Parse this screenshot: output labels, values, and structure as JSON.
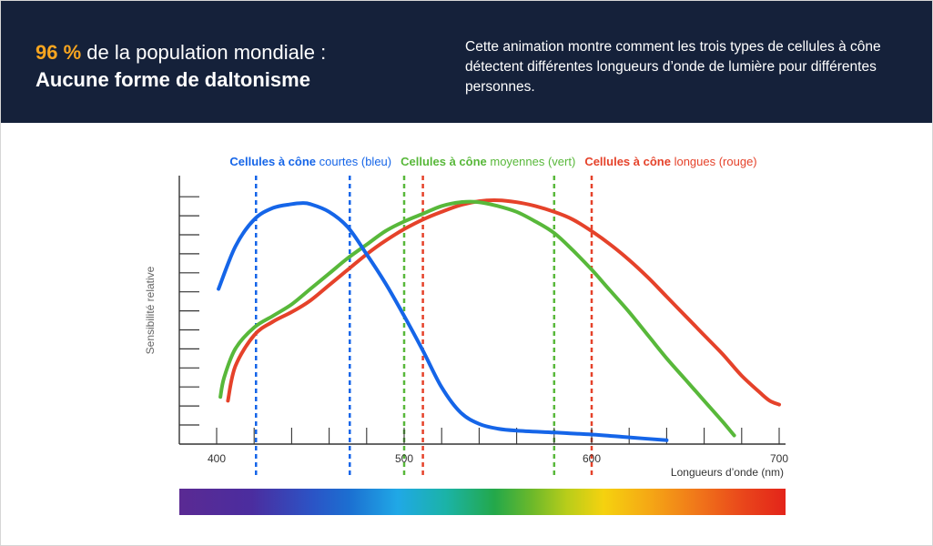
{
  "header": {
    "title_highlight": "96 %",
    "title_rest": " de la population mondiale :",
    "subtitle": "Aucune forme de daltonisme",
    "description": "Cette animation montre comment les trois types de cellules à cône détectent différentes longueurs d’onde de lumière pour différentes personnes."
  },
  "colors": {
    "header_bg": "#15213a",
    "highlight": "#f7a520",
    "short": "#1565e8",
    "medium": "#58b83a",
    "long": "#e5422a",
    "axis": "#333333"
  },
  "legend": [
    {
      "bold": "Cellules à cône",
      "rest": " courtes (bleu)",
      "color": "#1565e8"
    },
    {
      "bold": "Cellules à cône",
      "rest": " moyennes (vert)",
      "color": "#58b83a"
    },
    {
      "bold": "Cellules à cône",
      "rest": " longues (rouge)",
      "color": "#e5422a"
    }
  ],
  "chart_data": {
    "type": "line",
    "xlabel": "Longueurs d’onde (nm)",
    "ylabel": "Sensibilité relative",
    "xlim": [
      380,
      700
    ],
    "ylim": [
      0,
      13.5
    ],
    "x_ticks": [
      400,
      500,
      600,
      700
    ],
    "y_tick_count": 13,
    "grid": false,
    "legend_position": "top",
    "series": [
      {
        "name": "Cellules à cône courtes (bleu)",
        "color": "#1565e8",
        "x": [
          401,
          410,
          420,
          430,
          440,
          445,
          450,
          460,
          470,
          480,
          490,
          500,
          510,
          520,
          530,
          540,
          550,
          560,
          580,
          600,
          620,
          640
        ],
        "y": [
          8.0,
          10.2,
          11.6,
          12.2,
          12.4,
          12.45,
          12.4,
          12.0,
          11.2,
          9.8,
          8.3,
          6.6,
          4.8,
          2.9,
          1.6,
          1.0,
          0.75,
          0.65,
          0.55,
          0.45,
          0.3,
          0.15
        ]
      },
      {
        "name": "Cellules à cône moyennes (vert)",
        "color": "#58b83a",
        "x": [
          402,
          404,
          410,
          420,
          430,
          440,
          450,
          460,
          470,
          480,
          490,
          500,
          510,
          520,
          530,
          540,
          550,
          560,
          570,
          580,
          590,
          600,
          610,
          620,
          630,
          640,
          650,
          660,
          670,
          676
        ],
        "y": [
          2.4,
          3.4,
          4.9,
          6.0,
          6.6,
          7.2,
          8.0,
          8.8,
          9.6,
          10.3,
          11.0,
          11.5,
          11.9,
          12.3,
          12.5,
          12.5,
          12.3,
          12.0,
          11.5,
          10.9,
          10.0,
          9.0,
          7.9,
          6.8,
          5.6,
          4.4,
          3.3,
          2.2,
          1.1,
          0.4
        ]
      },
      {
        "name": "Cellules à cône longues (rouge)",
        "color": "#e5422a",
        "x": [
          406,
          410,
          420,
          430,
          440,
          450,
          460,
          470,
          480,
          490,
          500,
          510,
          520,
          530,
          540,
          550,
          560,
          570,
          580,
          590,
          600,
          610,
          620,
          630,
          640,
          650,
          660,
          670,
          680,
          690,
          695,
          700
        ],
        "y": [
          2.2,
          4.0,
          5.6,
          6.3,
          6.8,
          7.4,
          8.2,
          9.0,
          9.8,
          10.5,
          11.1,
          11.6,
          12.0,
          12.35,
          12.55,
          12.6,
          12.5,
          12.3,
          12.0,
          11.6,
          11.0,
          10.3,
          9.5,
          8.6,
          7.6,
          6.6,
          5.6,
          4.6,
          3.5,
          2.6,
          2.2,
          2.0
        ]
      }
    ],
    "reference_lines": [
      {
        "series": "courtes",
        "color": "#1565e8",
        "x": [
          421,
          471
        ]
      },
      {
        "series": "moyennes",
        "color": "#58b83a",
        "x": [
          500,
          580
        ]
      },
      {
        "series": "longues",
        "color": "#e5422a",
        "x": [
          510,
          600
        ]
      }
    ]
  }
}
